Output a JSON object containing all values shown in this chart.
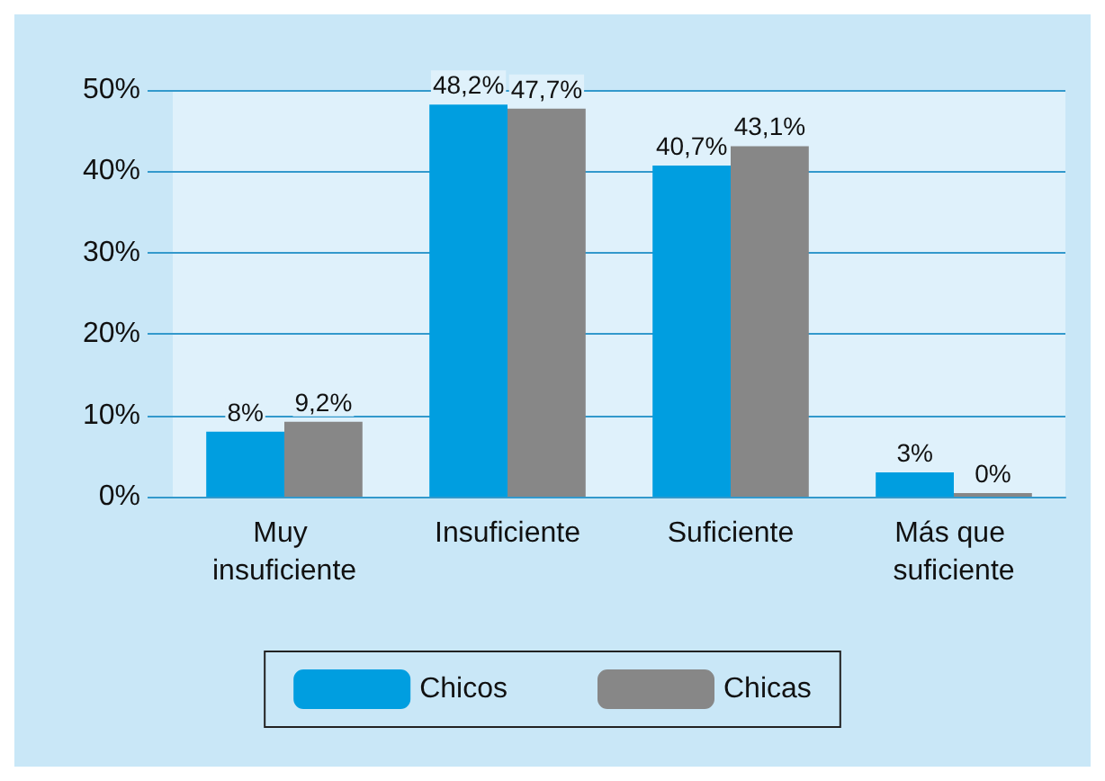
{
  "chart_data": {
    "type": "bar",
    "categories": [
      "Muy insuficiente",
      "Insuficiente",
      "Suficiente",
      "Más que suficiente"
    ],
    "series": [
      {
        "name": "Chicos",
        "color": "#009ee0",
        "values": [
          8,
          48.2,
          40.7,
          3
        ],
        "value_labels": [
          "8%",
          "48,2%",
          "40,7%",
          "3%"
        ]
      },
      {
        "name": "Chicas",
        "color": "#878787",
        "values": [
          9.2,
          47.7,
          43.1,
          0
        ],
        "value_labels": [
          "9,2%",
          "47,7%",
          "43,1%",
          "0%"
        ]
      }
    ],
    "ylim": [
      0,
      50
    ],
    "yticks": [
      {
        "value": 0,
        "label": "0%"
      },
      {
        "value": 10,
        "label": "10%"
      },
      {
        "value": 20,
        "label": "20%"
      },
      {
        "value": 30,
        "label": "30%"
      },
      {
        "value": 40,
        "label": "40%"
      },
      {
        "value": 50,
        "label": "50%"
      }
    ],
    "grid": "y",
    "legend": "bottom"
  }
}
